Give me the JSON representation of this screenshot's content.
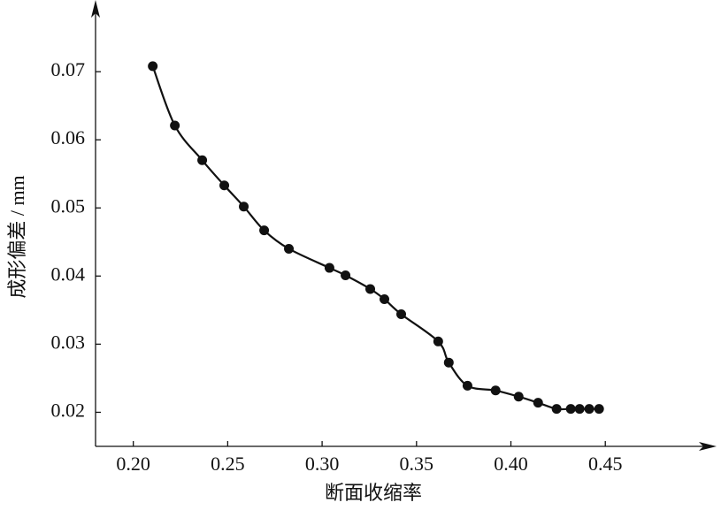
{
  "chart_data": {
    "type": "line",
    "x_label": "断面收缩率",
    "y_label": "成形偏差 / mm",
    "x": [
      0.2103,
      0.222,
      0.2365,
      0.2482,
      0.2585,
      0.2693,
      0.2824,
      0.3039,
      0.3124,
      0.3255,
      0.333,
      0.3419,
      0.3615,
      0.3671,
      0.377,
      0.3919,
      0.4041,
      0.4144,
      0.4242,
      0.4317,
      0.4364,
      0.4415,
      0.4467
    ],
    "series": [
      {
        "color": "#111111",
        "values": [
          0.0708,
          0.0621,
          0.057,
          0.0533,
          0.0502,
          0.0467,
          0.044,
          0.0412,
          0.0401,
          0.0381,
          0.0366,
          0.0344,
          0.0304,
          0.0273,
          0.0239,
          0.0232,
          0.0223,
          0.0214,
          0.0205,
          0.0205,
          0.0205,
          0.0205,
          0.0205
        ]
      }
    ],
    "xlim": [
      0.18,
      0.508
    ],
    "ylim": [
      0.015,
      0.08
    ],
    "xticks": [
      {
        "value": 0.2,
        "label": "0.20"
      },
      0.25,
      {
        "value": 0.3,
        "label": "0.30"
      },
      0.35,
      {
        "value": 0.4,
        "label": "0.40"
      },
      0.45
    ],
    "yticks": [
      0.02,
      0.03,
      0.04,
      0.05,
      0.06,
      0.07
    ]
  }
}
